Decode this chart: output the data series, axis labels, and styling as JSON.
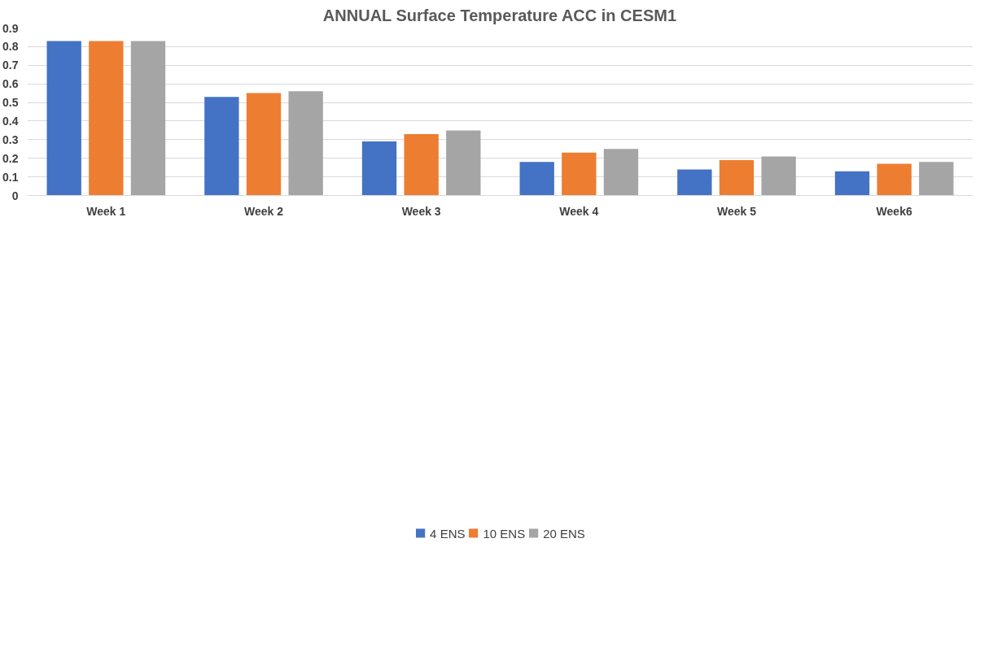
{
  "chart_data": {
    "type": "bar",
    "title": "ANNUAL Surface Temperature ACC in CESM1",
    "categories": [
      "Week 1",
      "Week 2",
      "Week 3",
      "Week 4",
      "Week 5",
      "Week6"
    ],
    "series": [
      {
        "name": "4 ENS",
        "color": "#4472c4",
        "values": [
          0.83,
          0.53,
          0.29,
          0.18,
          0.14,
          0.13
        ]
      },
      {
        "name": "10 ENS",
        "color": "#ed7d31",
        "values": [
          0.83,
          0.55,
          0.33,
          0.23,
          0.19,
          0.17
        ]
      },
      {
        "name": "20 ENS",
        "color": "#a5a5a5",
        "values": [
          0.83,
          0.56,
          0.35,
          0.25,
          0.21,
          0.18
        ]
      }
    ],
    "ylim": [
      0,
      0.9
    ],
    "yticks": [
      0,
      0.1,
      0.2,
      0.3,
      0.4,
      0.5,
      0.6,
      0.7,
      0.8,
      0.9
    ],
    "grid": "y",
    "legend": "bottom"
  }
}
